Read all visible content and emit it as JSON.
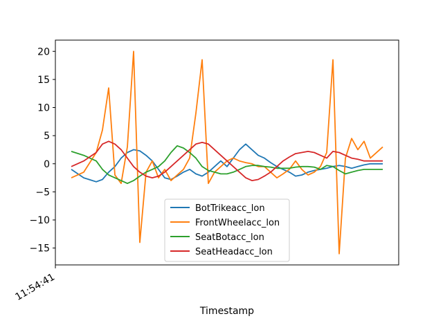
{
  "chart_data": {
    "type": "line",
    "xlabel": "Timestamp",
    "ylabel": "",
    "x_tick_labels": [
      "11:54:41"
    ],
    "ylim": [
      -18,
      22
    ],
    "y_ticks": [
      -15,
      -10,
      -5,
      0,
      5,
      10,
      15,
      20
    ],
    "x": [
      0.0,
      0.04,
      0.08,
      0.1,
      0.12,
      0.14,
      0.16,
      0.18,
      0.2,
      0.22,
      0.24,
      0.26,
      0.28,
      0.3,
      0.32,
      0.34,
      0.36,
      0.38,
      0.4,
      0.42,
      0.44,
      0.46,
      0.48,
      0.5,
      0.52,
      0.54,
      0.56,
      0.58,
      0.6,
      0.62,
      0.64,
      0.66,
      0.68,
      0.7,
      0.72,
      0.74,
      0.76,
      0.78,
      0.8,
      0.82,
      0.84,
      0.86,
      0.88,
      0.9,
      0.92,
      0.94,
      0.96,
      1.0
    ],
    "xlim": [
      0,
      1
    ],
    "grid": false,
    "legend_position": "lower-center",
    "series": [
      {
        "name": "BotTrikeacc_lon",
        "color": "#1f77b4",
        "values": [
          -1.0,
          -2.5,
          -3.2,
          -2.8,
          -1.5,
          -0.5,
          1.0,
          2.0,
          2.5,
          2.3,
          1.5,
          0.5,
          -1.0,
          -2.5,
          -2.8,
          -2.2,
          -1.5,
          -1.0,
          -1.8,
          -2.2,
          -1.5,
          -0.5,
          0.5,
          -0.5,
          1.0,
          2.5,
          3.5,
          2.5,
          1.5,
          1.0,
          0.2,
          -0.5,
          -1.0,
          -1.5,
          -2.2,
          -2.0,
          -1.5,
          -1.2,
          -1.0,
          -0.8,
          -0.5,
          -0.3,
          -0.5,
          -0.8,
          -0.5,
          -0.2,
          0.0,
          0.0
        ]
      },
      {
        "name": "FrontWheelacc_lon",
        "color": "#ff7f0e",
        "values": [
          -2.5,
          -1.5,
          2.0,
          6.0,
          13.5,
          -2.0,
          -3.5,
          3.0,
          20.0,
          -14.0,
          -1.5,
          0.5,
          -2.5,
          -1.0,
          -3.0,
          -2.0,
          -1.0,
          1.0,
          9.0,
          18.5,
          -3.5,
          -1.5,
          -0.5,
          0.5,
          1.0,
          0.5,
          0.2,
          0.0,
          -0.5,
          -0.5,
          -1.5,
          -2.5,
          -1.8,
          -1.0,
          0.5,
          -1.0,
          -2.0,
          -1.5,
          -0.5,
          2.0,
          18.5,
          -16.0,
          1.0,
          4.5,
          2.5,
          4.0,
          1.0,
          3.0
        ]
      },
      {
        "name": "SeatBotacc_lon",
        "color": "#2ca02c",
        "values": [
          2.2,
          1.5,
          0.5,
          -1.0,
          -2.0,
          -2.5,
          -3.0,
          -3.5,
          -3.0,
          -2.2,
          -1.5,
          -1.0,
          -0.5,
          0.5,
          2.0,
          3.2,
          2.8,
          2.0,
          1.0,
          -0.5,
          -1.2,
          -1.5,
          -1.8,
          -1.8,
          -1.5,
          -1.0,
          -0.5,
          -0.3,
          -0.3,
          -0.5,
          -0.6,
          -0.8,
          -0.8,
          -0.8,
          -0.6,
          -0.5,
          -0.5,
          -0.6,
          -1.0,
          -0.3,
          -0.5,
          -1.2,
          -1.8,
          -1.5,
          -1.2,
          -1.0,
          -1.0,
          -1.0
        ]
      },
      {
        "name": "SeatHeadacc_lon",
        "color": "#d62728",
        "values": [
          -0.5,
          0.5,
          2.0,
          3.5,
          4.0,
          3.5,
          2.5,
          1.0,
          -0.5,
          -1.5,
          -2.2,
          -2.5,
          -2.2,
          -1.5,
          -0.5,
          0.5,
          1.5,
          2.5,
          3.5,
          3.8,
          3.5,
          2.5,
          1.5,
          0.5,
          -0.5,
          -1.5,
          -2.5,
          -3.0,
          -2.8,
          -2.2,
          -1.5,
          -0.5,
          0.5,
          1.2,
          1.8,
          2.0,
          2.2,
          2.0,
          1.5,
          1.0,
          2.2,
          2.0,
          1.5,
          1.0,
          0.8,
          0.5,
          0.5,
          0.5
        ]
      }
    ]
  }
}
